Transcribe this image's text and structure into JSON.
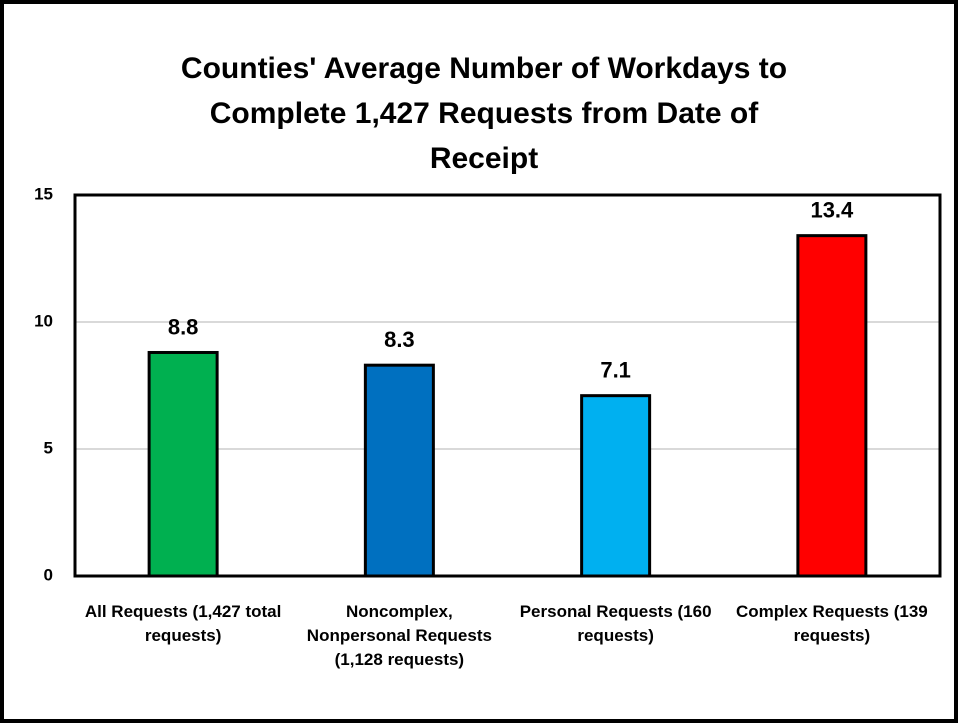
{
  "chart_data": {
    "type": "bar",
    "title": "Counties' Average Number of Workdays to Complete 1,427 Requests from Date of Receipt",
    "categories": [
      "All Requests (1,427 total requests)",
      "Noncomplex, Nonpersonal Requests (1,128 requests)",
      "Personal Requests (160 requests)",
      "Complex Requests (139 requests)"
    ],
    "values": [
      8.8,
      8.3,
      7.1,
      13.4
    ],
    "colors": [
      "#00b050",
      "#0070c0",
      "#00b0f0",
      "#ff0000"
    ],
    "ylim": [
      0,
      15
    ],
    "yticks": [
      0,
      5,
      10,
      15
    ],
    "grid": true
  }
}
